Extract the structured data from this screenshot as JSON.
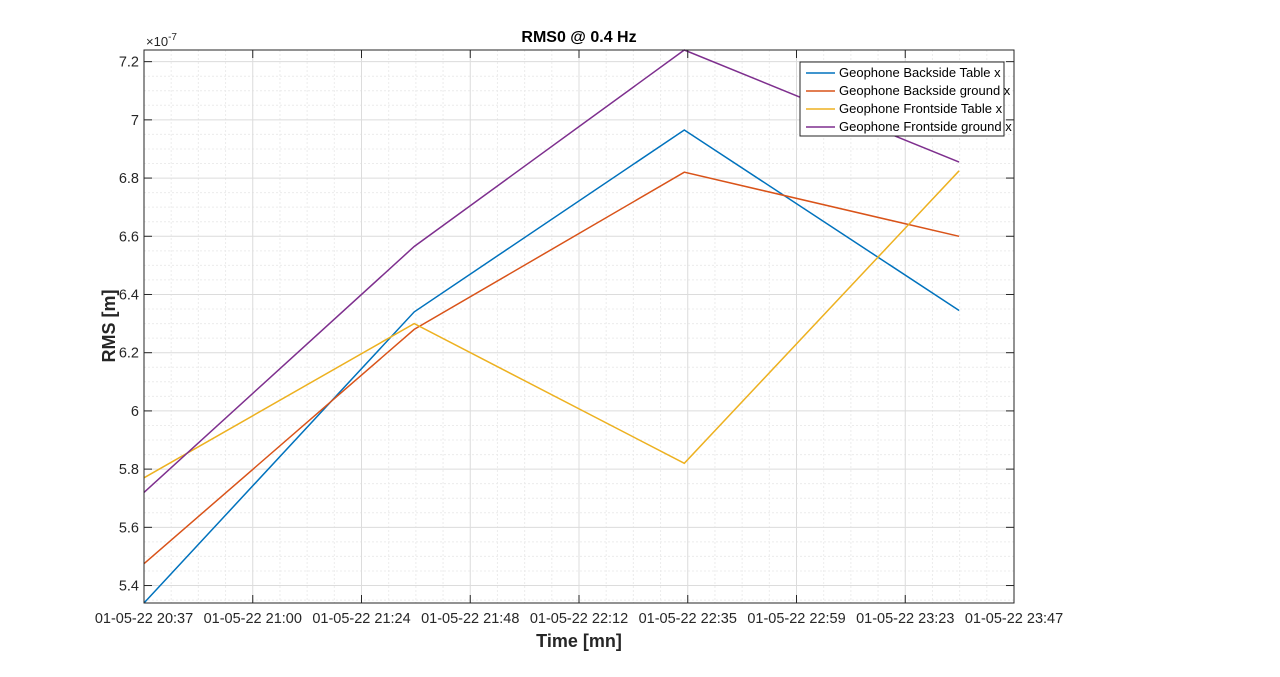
{
  "chart_data": {
    "type": "line",
    "title": "RMS0 @ 0.4 Hz",
    "xlabel": "Time [mn]",
    "ylabel": "RMS [m]",
    "y_exponent_label": "×10",
    "y_exponent": "-7",
    "x_ticks": [
      "01-05-22 20:37",
      "01-05-22 21:00",
      "01-05-22 21:24",
      "01-05-22 21:48",
      "01-05-22 22:12",
      "01-05-22 22:35",
      "01-05-22 22:59",
      "01-05-22 23:23",
      "01-05-22 23:47"
    ],
    "x_tick_minutes": [
      0,
      23.75,
      47.5,
      71.25,
      95,
      118.75,
      142.5,
      166.25,
      190
    ],
    "xlim": [
      0,
      190
    ],
    "y_ticks": [
      "5.4",
      "5.6",
      "5.8",
      "6",
      "6.2",
      "6.4",
      "6.6",
      "6.8",
      "7",
      "7.2"
    ],
    "y_tick_values": [
      5.4,
      5.6,
      5.8,
      6.0,
      6.2,
      6.4,
      6.6,
      6.8,
      7.0,
      7.2
    ],
    "ylim": [
      5.34,
      7.24
    ],
    "grid": true,
    "minor_grid": true,
    "legend_position": "top-right",
    "x": [
      0,
      59,
      118,
      178
    ],
    "series": [
      {
        "name": "Geophone Backside Table x",
        "color": "#0072BD",
        "values": [
          5.34,
          6.34,
          6.965,
          6.345
        ]
      },
      {
        "name": "Geophone Backside ground x",
        "color": "#D95319",
        "values": [
          5.475,
          6.28,
          6.82,
          6.6
        ]
      },
      {
        "name": "Geophone Frontside Table x",
        "color": "#EDB120",
        "values": [
          5.77,
          6.3,
          5.82,
          6.825
        ]
      },
      {
        "name": "Geophone Frontside ground x",
        "color": "#7E2F8E",
        "values": [
          5.72,
          6.565,
          7.24,
          6.855
        ]
      }
    ]
  }
}
